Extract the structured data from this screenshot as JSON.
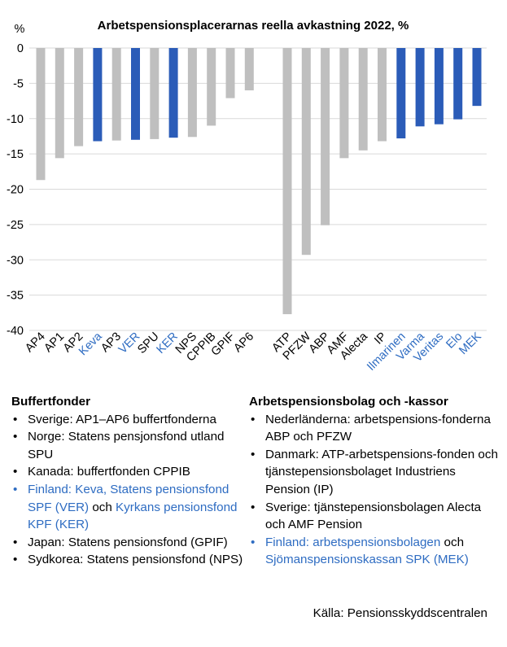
{
  "chart_data": {
    "type": "bar",
    "title": "Arbetspensionsplacerarnas reella avkastning 2022, %",
    "ylabel": "%",
    "ylim": [
      -40,
      0
    ],
    "yticks": [
      0,
      -5,
      -10,
      -15,
      -20,
      -25,
      -30,
      -35,
      -40
    ],
    "grid": true,
    "colors": {
      "gray": "#bfbfbf",
      "blue": "#2b5cb8",
      "blue_text": "#2e6cc2"
    },
    "groups": [
      {
        "categories": [
          "AP4",
          "AP1",
          "AP2",
          "Keva",
          "AP3",
          "VER",
          "SPU",
          "KER",
          "NPS",
          "CPPIB",
          "GPIF",
          "AP6"
        ],
        "values": [
          -18.7,
          -15.6,
          -13.9,
          -13.2,
          -13.1,
          -13.0,
          -12.9,
          -12.7,
          -12.6,
          -11.0,
          -7.1,
          -6.0
        ],
        "highlight": [
          false,
          false,
          false,
          true,
          false,
          true,
          false,
          true,
          false,
          false,
          false,
          false
        ]
      },
      {
        "categories": [
          "ATP",
          "PFZW",
          "ABP",
          "AMF",
          "Alecta",
          "IP",
          "Ilmarinen",
          "Varma",
          "Veritas",
          "Elo",
          "MEK"
        ],
        "values": [
          -37.7,
          -29.3,
          -25.1,
          -15.6,
          -14.5,
          -13.2,
          -12.8,
          -11.1,
          -10.8,
          -10.1,
          -8.2
        ],
        "highlight": [
          false,
          false,
          false,
          false,
          false,
          false,
          true,
          true,
          true,
          true,
          true
        ]
      }
    ]
  },
  "legend": {
    "left": {
      "heading": "Buffertfonder",
      "items": [
        {
          "text": "Sverige: AP1–AP6 buffertfonderna",
          "color": "black"
        },
        {
          "text": "Norge: Statens pensjonsfond utland SPU",
          "color": "black"
        },
        {
          "text": "Kanada: buffertfonden CPPIB",
          "color": "black"
        },
        {
          "segments": [
            {
              "text": "Finland: Keva, Statens pensionsfond SPF (VER)",
              "color": "blue"
            },
            {
              "text": " och ",
              "color": "black"
            },
            {
              "text": "Kyrkans pensionsfond KPF (KER)",
              "color": "blue"
            }
          ]
        },
        {
          "text": "Japan: Statens pensionsfond (GPIF)",
          "color": "black"
        },
        {
          "text": "Sydkorea: Statens pensionsfond (NPS)",
          "color": "black"
        }
      ]
    },
    "right": {
      "heading": "Arbetspensionsbolag och -kassor",
      "items": [
        {
          "text": "Nederländerna: arbetspensions-fonderna ABP och PFZW",
          "color": "black"
        },
        {
          "text": "Danmark: ATP-arbetspensions-fonden och tjänstepensionsbolaget Industriens Pension (IP)",
          "color": "black"
        },
        {
          "text": "Sverige: tjänstepensionsbolagen Alecta och AMF Pension",
          "color": "black"
        },
        {
          "segments": [
            {
              "text": "Finland: arbetspensionsbolagen",
              "color": "blue"
            },
            {
              "text": " och ",
              "color": "black"
            },
            {
              "text": "Sjömanspensionskassan SPK (MEK)",
              "color": "blue"
            }
          ]
        }
      ]
    }
  },
  "source": "Källa: Pensionsskyddscentralen"
}
